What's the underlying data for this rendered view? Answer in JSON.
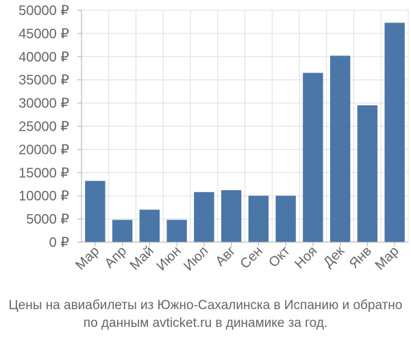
{
  "chart_data": {
    "type": "bar",
    "title": "",
    "xlabel": "",
    "ylabel": "",
    "categories": [
      "Мар",
      "Апр",
      "Май",
      "Июн",
      "Июл",
      "Авг",
      "Сен",
      "Окт",
      "Ноя",
      "Дек",
      "Янв",
      "Мар"
    ],
    "values": [
      13200,
      4800,
      7000,
      4800,
      10800,
      11200,
      10000,
      10000,
      36500,
      40200,
      29500,
      47300
    ],
    "ylim": [
      0,
      50000
    ],
    "yticks": [
      0,
      5000,
      10000,
      15000,
      20000,
      25000,
      30000,
      35000,
      40000,
      45000,
      50000
    ],
    "ytick_labels": [
      "0 ₽",
      "5000 ₽",
      "10000 ₽",
      "15000 ₽",
      "20000 ₽",
      "25000 ₽",
      "30000 ₽",
      "35000 ₽",
      "40000 ₽",
      "45000 ₽",
      "50000 ₽"
    ],
    "grid": true,
    "bar_color": "#4a76a8",
    "grid_color": "#dddddd",
    "axis_color": "#aaaaaa",
    "text_color": "#666666"
  },
  "caption": {
    "line1": "Цены на авиабилеты из Южно-Сахалинска в Испанию и обратно",
    "line2": "по данным avticket.ru в динамике за год."
  }
}
